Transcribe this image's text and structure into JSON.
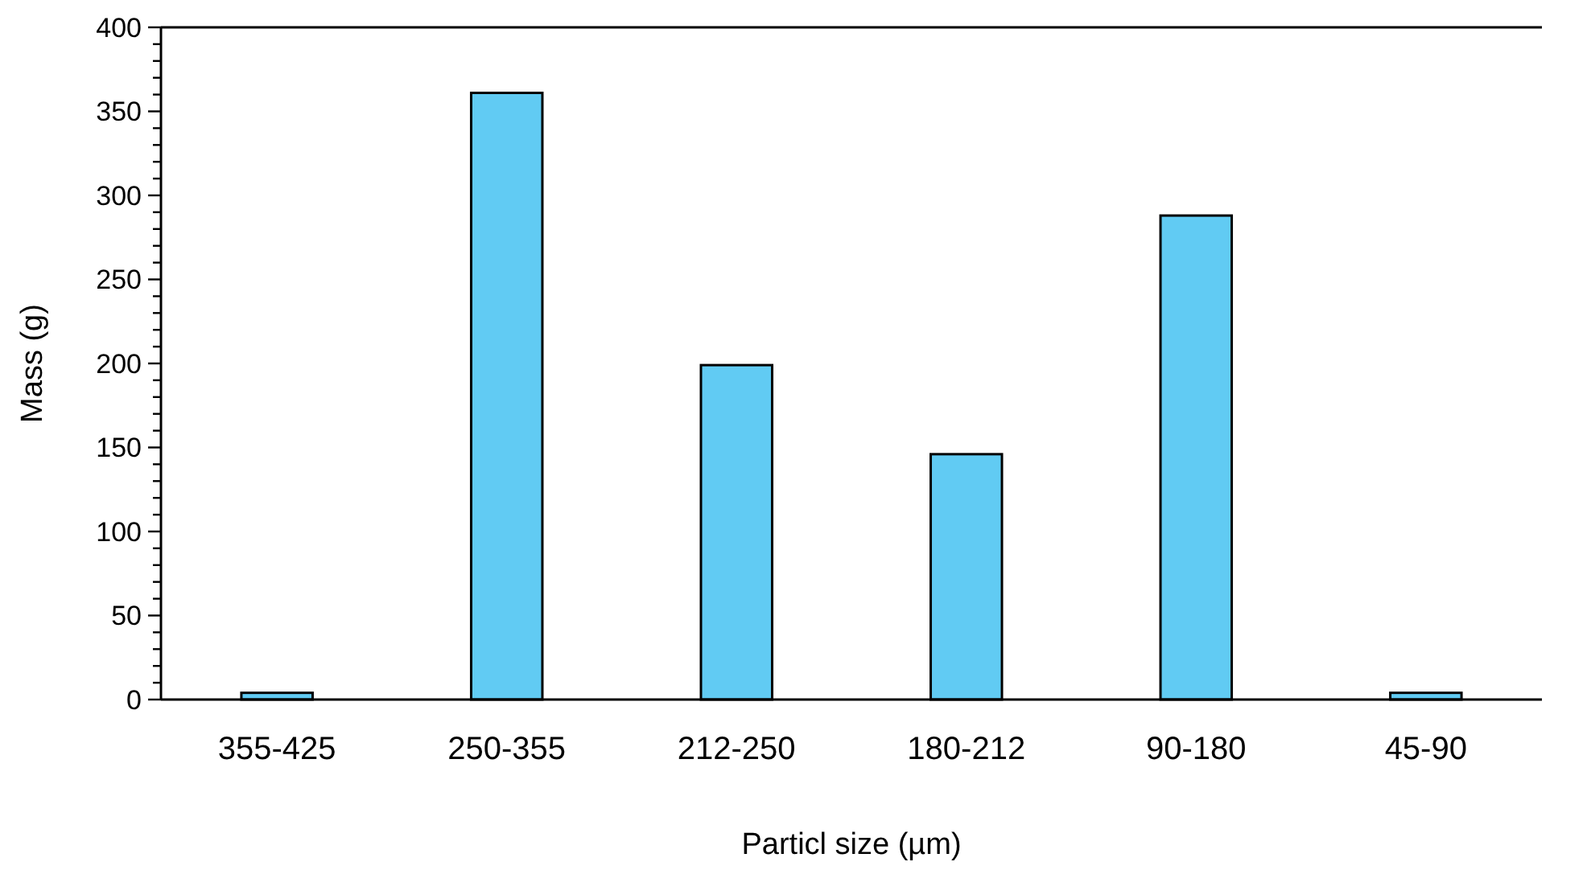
{
  "chart_data": {
    "type": "bar",
    "xlabel": "Particl size (µm)",
    "ylabel": "Mass (g)",
    "categories": [
      "355-425",
      "250-355",
      "212-250",
      "180-212",
      "90-180",
      "45-90"
    ],
    "values": [
      4,
      361,
      199,
      146,
      288,
      4
    ],
    "color": "#61cbf3",
    "ylim": [
      0,
      400
    ],
    "yticks": [
      0,
      {
        "value": 10,
        "label": null
      },
      {
        "value": 20,
        "label": null
      },
      {
        "value": 30,
        "label": null
      },
      {
        "value": 40,
        "label": null
      },
      50,
      {
        "value": 60,
        "label": null
      },
      {
        "value": 70,
        "label": null
      },
      {
        "value": 80,
        "label": null
      },
      {
        "value": 90,
        "label": null
      },
      100,
      {
        "value": 110,
        "label": null
      },
      {
        "value": 120,
        "label": null
      },
      {
        "value": 130,
        "label": null
      },
      {
        "value": 140,
        "label": null
      },
      150,
      {
        "value": 160,
        "label": null
      },
      {
        "value": 170,
        "label": null
      },
      {
        "value": 180,
        "label": null
      },
      {
        "value": 190,
        "label": null
      },
      200,
      {
        "value": 210,
        "label": null
      },
      {
        "value": 220,
        "label": null
      },
      {
        "value": 230,
        "label": null
      },
      {
        "value": 240,
        "label": null
      },
      250,
      {
        "value": 260,
        "label": null
      },
      {
        "value": 270,
        "label": null
      },
      {
        "value": 280,
        "label": null
      },
      {
        "value": 290,
        "label": null
      },
      300,
      {
        "value": 310,
        "label": null
      },
      {
        "value": 320,
        "label": null
      },
      {
        "value": 330,
        "label": null
      },
      {
        "value": 340,
        "label": null
      },
      350,
      {
        "value": 360,
        "label": null
      },
      {
        "value": 370,
        "label": null
      },
      {
        "value": 380,
        "label": null
      },
      {
        "value": 390,
        "label": null
      },
      400
    ],
    "grid": false
  }
}
